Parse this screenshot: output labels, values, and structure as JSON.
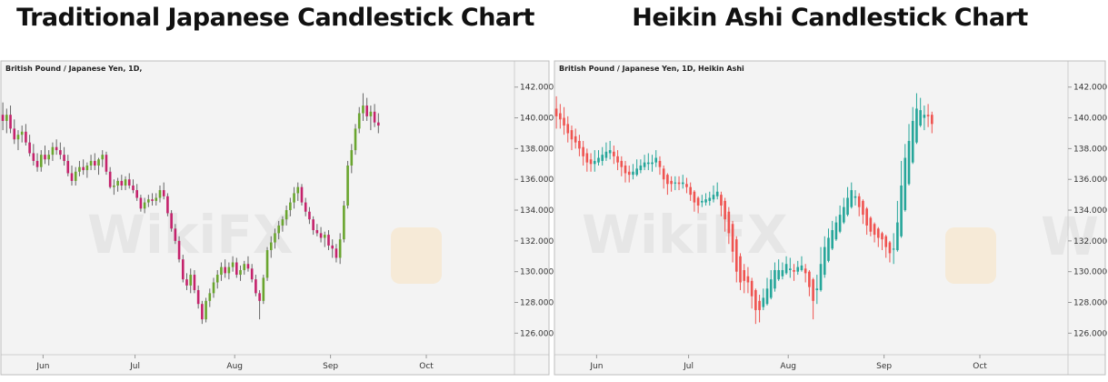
{
  "colors": {
    "up_left": "#6aa52f",
    "down_left": "#c4236c",
    "up_right": "#26a69a",
    "down_right": "#ef5350",
    "panel_bg": "#f3f3f3",
    "wick": "#666666"
  },
  "chart_data": [
    {
      "type": "candlestick",
      "title": "Traditional Japanese Candlestick Chart",
      "symbol_label": "British Pound / Japanese Yen, 1D,",
      "indicator_label": "",
      "yticks": [
        "142.000",
        "140.000",
        "138.000",
        "136.000",
        "134.000",
        "132.000",
        "130.000",
        "128.000",
        "126.000"
      ],
      "ylim": [
        124.6,
        143.7
      ],
      "xticks": [
        "Jun",
        "Jul",
        "Aug",
        "Sep",
        "Oct"
      ],
      "xtick_positions": [
        11,
        35,
        61,
        86,
        111
      ],
      "x_range": [
        0,
        134
      ],
      "grid": false,
      "candles": [
        [
          140.2,
          141.0,
          139.2,
          139.8
        ],
        [
          139.8,
          140.6,
          139.0,
          140.2
        ],
        [
          140.2,
          140.8,
          139.0,
          139.3
        ],
        [
          139.3,
          139.9,
          138.3,
          138.6
        ],
        [
          138.6,
          139.2,
          137.9,
          138.9
        ],
        [
          138.9,
          139.5,
          138.4,
          139.1
        ],
        [
          139.1,
          139.6,
          138.2,
          138.4
        ],
        [
          138.4,
          138.9,
          137.5,
          137.7
        ],
        [
          137.7,
          138.3,
          136.9,
          137.2
        ],
        [
          137.2,
          137.7,
          136.5,
          136.8
        ],
        [
          136.8,
          137.9,
          136.5,
          137.6
        ],
        [
          137.6,
          138.2,
          137.0,
          137.3
        ],
        [
          137.3,
          137.9,
          136.9,
          137.6
        ],
        [
          137.6,
          138.4,
          137.2,
          138.1
        ],
        [
          138.1,
          138.6,
          137.6,
          137.9
        ],
        [
          137.9,
          138.4,
          137.3,
          137.6
        ],
        [
          137.6,
          138.1,
          136.9,
          137.2
        ],
        [
          137.2,
          137.6,
          136.2,
          136.4
        ],
        [
          136.4,
          136.9,
          135.6,
          135.9
        ],
        [
          135.9,
          136.8,
          135.6,
          136.5
        ],
        [
          136.5,
          137.2,
          136.2,
          136.8
        ],
        [
          136.8,
          137.3,
          136.3,
          136.6
        ],
        [
          136.6,
          137.1,
          136.1,
          136.9
        ],
        [
          136.9,
          137.6,
          136.6,
          137.2
        ],
        [
          137.2,
          137.7,
          136.6,
          136.9
        ],
        [
          136.9,
          137.4,
          136.3,
          137.3
        ],
        [
          137.3,
          137.9,
          136.8,
          137.6
        ],
        [
          137.6,
          137.8,
          136.3,
          136.5
        ],
        [
          136.5,
          136.8,
          135.4,
          135.5
        ],
        [
          135.5,
          136.0,
          135.0,
          135.6
        ],
        [
          135.6,
          136.1,
          135.2,
          135.9
        ],
        [
          135.9,
          136.3,
          135.3,
          135.6
        ],
        [
          135.6,
          136.2,
          135.3,
          136.0
        ],
        [
          136.0,
          136.4,
          135.4,
          135.6
        ],
        [
          135.6,
          136.0,
          135.1,
          135.3
        ],
        [
          135.3,
          135.7,
          134.6,
          134.8
        ],
        [
          134.8,
          135.0,
          133.9,
          134.1
        ],
        [
          134.1,
          134.8,
          133.8,
          134.5
        ],
        [
          134.5,
          135.0,
          134.2,
          134.7
        ],
        [
          134.7,
          135.1,
          134.3,
          134.6
        ],
        [
          134.6,
          135.1,
          134.3,
          134.8
        ],
        [
          134.8,
          135.6,
          134.5,
          135.3
        ],
        [
          135.3,
          135.8,
          134.7,
          134.9
        ],
        [
          134.9,
          135.1,
          133.6,
          133.8
        ],
        [
          133.8,
          134.0,
          132.6,
          132.8
        ],
        [
          132.8,
          133.1,
          131.8,
          132.0
        ],
        [
          132.0,
          132.3,
          130.6,
          130.8
        ],
        [
          130.8,
          131.1,
          129.3,
          129.5
        ],
        [
          129.5,
          129.9,
          128.8,
          129.1
        ],
        [
          129.1,
          130.2,
          128.6,
          129.8
        ],
        [
          129.8,
          130.1,
          128.6,
          128.8
        ],
        [
          128.8,
          129.1,
          127.6,
          127.9
        ],
        [
          127.9,
          128.1,
          126.6,
          126.9
        ],
        [
          126.9,
          128.3,
          126.7,
          128.1
        ],
        [
          128.1,
          128.9,
          127.7,
          128.6
        ],
        [
          128.6,
          129.6,
          128.3,
          129.3
        ],
        [
          129.3,
          130.1,
          128.9,
          129.8
        ],
        [
          129.8,
          130.6,
          129.4,
          130.3
        ],
        [
          130.3,
          130.8,
          129.6,
          129.9
        ],
        [
          129.9,
          130.6,
          129.5,
          130.3
        ],
        [
          130.3,
          131.0,
          130.0,
          130.6
        ],
        [
          130.6,
          130.9,
          129.6,
          129.8
        ],
        [
          129.8,
          130.4,
          129.4,
          130.1
        ],
        [
          130.1,
          130.7,
          129.8,
          130.5
        ],
        [
          130.5,
          131.0,
          130.0,
          130.2
        ],
        [
          130.2,
          130.5,
          129.3,
          129.5
        ],
        [
          129.5,
          129.8,
          128.4,
          128.6
        ],
        [
          128.6,
          128.8,
          126.9,
          128.1
        ],
        [
          128.1,
          129.8,
          127.9,
          129.6
        ],
        [
          129.6,
          131.6,
          129.4,
          131.4
        ],
        [
          131.4,
          132.3,
          130.9,
          131.9
        ],
        [
          131.9,
          132.8,
          131.5,
          132.5
        ],
        [
          132.5,
          133.3,
          132.1,
          133.0
        ],
        [
          133.0,
          133.6,
          132.6,
          133.4
        ],
        [
          133.4,
          134.3,
          133.0,
          134.0
        ],
        [
          134.0,
          134.8,
          133.6,
          134.5
        ],
        [
          134.5,
          135.5,
          134.1,
          135.1
        ],
        [
          135.1,
          135.8,
          134.6,
          135.5
        ],
        [
          135.5,
          135.7,
          134.3,
          134.5
        ],
        [
          134.5,
          134.8,
          133.6,
          133.9
        ],
        [
          133.9,
          134.2,
          133.1,
          133.4
        ],
        [
          133.4,
          133.6,
          132.4,
          132.7
        ],
        [
          132.7,
          133.1,
          132.3,
          132.5
        ],
        [
          132.5,
          132.9,
          131.9,
          132.2
        ],
        [
          132.2,
          132.6,
          131.6,
          132.4
        ],
        [
          132.4,
          132.7,
          131.4,
          131.7
        ],
        [
          131.7,
          132.1,
          130.9,
          131.5
        ],
        [
          131.5,
          131.8,
          130.6,
          130.9
        ],
        [
          130.9,
          132.5,
          130.5,
          132.1
        ],
        [
          132.1,
          134.6,
          131.9,
          134.3
        ],
        [
          134.3,
          137.2,
          134.1,
          136.9
        ],
        [
          136.9,
          138.3,
          136.4,
          137.9
        ],
        [
          137.9,
          139.6,
          137.6,
          139.3
        ],
        [
          139.3,
          140.7,
          139.0,
          140.3
        ],
        [
          140.3,
          141.6,
          139.8,
          140.8
        ],
        [
          140.8,
          141.3,
          139.8,
          140.1
        ],
        [
          140.1,
          140.8,
          139.2,
          140.4
        ],
        [
          140.4,
          140.9,
          139.4,
          139.7
        ],
        [
          139.7,
          140.3,
          139.0,
          139.5
        ]
      ]
    },
    {
      "type": "candlestick",
      "title": "Heikin Ashi Candlestick Chart",
      "symbol_label": "British Pound / Japanese Yen, 1D,",
      "indicator_label": "Heikin Ashi",
      "yticks": [
        "142.000",
        "140.000",
        "138.000",
        "136.000",
        "134.000",
        "132.000",
        "130.000",
        "128.000",
        "126.000"
      ],
      "ylim": [
        124.6,
        143.7
      ],
      "xticks": [
        "Jun",
        "Jul",
        "Aug",
        "Sep",
        "Oct"
      ],
      "xtick_positions": [
        11,
        35,
        61,
        86,
        111
      ],
      "x_range": [
        0,
        134
      ],
      "grid": false,
      "candles": [
        [
          140.6,
          141.4,
          139.3,
          140.1
        ],
        [
          140.3,
          140.9,
          139.3,
          139.9
        ],
        [
          140.0,
          140.7,
          138.9,
          139.5
        ],
        [
          139.6,
          140.1,
          138.4,
          139.0
        ],
        [
          139.2,
          139.5,
          137.9,
          138.6
        ],
        [
          138.8,
          139.3,
          138.0,
          138.4
        ],
        [
          138.5,
          138.9,
          137.5,
          138.0
        ],
        [
          138.1,
          138.5,
          136.9,
          137.5
        ],
        [
          137.7,
          138.0,
          136.5,
          137.1
        ],
        [
          137.3,
          137.7,
          136.5,
          137.0
        ],
        [
          137.0,
          137.9,
          136.5,
          137.2
        ],
        [
          137.1,
          137.9,
          136.9,
          137.4
        ],
        [
          137.2,
          138.1,
          136.9,
          137.6
        ],
        [
          137.4,
          138.4,
          137.2,
          137.8
        ],
        [
          137.7,
          138.5,
          137.3,
          137.9
        ],
        [
          137.8,
          138.2,
          137.0,
          137.5
        ],
        [
          137.5,
          137.9,
          136.6,
          137.1
        ],
        [
          137.2,
          137.5,
          136.2,
          136.8
        ],
        [
          136.9,
          137.2,
          135.8,
          136.4
        ],
        [
          136.5,
          136.9,
          135.8,
          136.3
        ],
        [
          136.3,
          137.0,
          136.0,
          136.5
        ],
        [
          136.3,
          137.3,
          136.2,
          136.7
        ],
        [
          136.6,
          137.3,
          136.4,
          136.9
        ],
        [
          136.8,
          137.6,
          136.6,
          137.1
        ],
        [
          137.0,
          137.7,
          136.6,
          137.1
        ],
        [
          137.0,
          137.6,
          136.5,
          137.1
        ],
        [
          137.1,
          137.9,
          136.8,
          137.4
        ],
        [
          137.2,
          137.5,
          136.3,
          136.8
        ],
        [
          136.7,
          136.9,
          135.4,
          136.0
        ],
        [
          136.3,
          136.4,
          135.0,
          135.7
        ],
        [
          135.9,
          136.2,
          135.2,
          135.7
        ],
        [
          135.8,
          136.2,
          135.3,
          135.8
        ],
        [
          135.8,
          136.2,
          135.3,
          135.7
        ],
        [
          135.7,
          136.3,
          135.4,
          135.8
        ],
        [
          135.7,
          136.1,
          135.1,
          135.5
        ],
        [
          135.5,
          135.8,
          134.6,
          135.0
        ],
        [
          135.2,
          135.3,
          133.9,
          134.5
        ],
        [
          134.8,
          134.9,
          133.8,
          134.3
        ],
        [
          134.5,
          135.0,
          134.2,
          134.6
        ],
        [
          134.5,
          135.1,
          134.3,
          134.7
        ],
        [
          134.6,
          135.2,
          134.3,
          134.8
        ],
        [
          134.7,
          135.6,
          134.5,
          135.0
        ],
        [
          134.9,
          135.8,
          134.7,
          135.2
        ],
        [
          135.0,
          135.2,
          133.6,
          134.3
        ],
        [
          134.6,
          134.8,
          132.6,
          133.4
        ],
        [
          133.9,
          134.2,
          131.8,
          132.5
        ],
        [
          133.1,
          133.3,
          130.6,
          131.3
        ],
        [
          132.1,
          132.3,
          129.3,
          130.0
        ],
        [
          131.0,
          131.2,
          128.8,
          129.3
        ],
        [
          130.1,
          130.5,
          128.6,
          129.4
        ],
        [
          129.7,
          130.3,
          128.6,
          129.3
        ],
        [
          129.4,
          129.6,
          127.6,
          128.4
        ],
        [
          128.8,
          128.9,
          126.6,
          127.5
        ],
        [
          128.1,
          128.5,
          126.7,
          127.5
        ],
        [
          127.7,
          128.9,
          127.5,
          128.3
        ],
        [
          127.9,
          129.6,
          127.8,
          128.9
        ],
        [
          128.3,
          130.1,
          128.2,
          129.5
        ],
        [
          128.9,
          130.6,
          128.7,
          130.1
        ],
        [
          129.5,
          130.8,
          129.4,
          130.1
        ],
        [
          129.7,
          130.6,
          129.5,
          130.1
        ],
        [
          129.9,
          131.0,
          129.8,
          130.5
        ],
        [
          130.1,
          130.9,
          129.6,
          130.2
        ],
        [
          130.1,
          130.5,
          129.4,
          130.0
        ],
        [
          130.0,
          130.7,
          129.8,
          130.3
        ],
        [
          130.1,
          131.0,
          130.0,
          130.4
        ],
        [
          130.2,
          130.5,
          129.3,
          129.9
        ],
        [
          130.0,
          130.1,
          128.4,
          129.0
        ],
        [
          129.5,
          129.6,
          126.9,
          128.1
        ],
        [
          128.8,
          129.8,
          127.9,
          128.9
        ],
        [
          128.8,
          131.6,
          128.7,
          130.5
        ],
        [
          129.8,
          132.3,
          129.6,
          131.6
        ],
        [
          130.7,
          132.8,
          130.6,
          132.2
        ],
        [
          131.5,
          133.3,
          131.4,
          132.7
        ],
        [
          132.1,
          133.6,
          132.0,
          133.2
        ],
        [
          132.6,
          134.3,
          132.5,
          133.7
        ],
        [
          133.2,
          134.8,
          133.1,
          134.2
        ],
        [
          133.7,
          135.5,
          133.6,
          134.8
        ],
        [
          134.2,
          135.8,
          134.1,
          135.3
        ],
        [
          134.8,
          135.3,
          134.3,
          134.9
        ],
        [
          134.9,
          135.1,
          133.6,
          134.2
        ],
        [
          134.6,
          134.7,
          133.1,
          133.7
        ],
        [
          134.1,
          134.2,
          132.4,
          133.0
        ],
        [
          133.5,
          133.6,
          132.3,
          132.6
        ],
        [
          133.1,
          133.2,
          131.9,
          132.4
        ],
        [
          132.8,
          132.9,
          131.6,
          132.2
        ],
        [
          132.5,
          132.6,
          131.4,
          132.1
        ],
        [
          132.3,
          132.4,
          130.9,
          131.6
        ],
        [
          131.9,
          132.0,
          130.6,
          131.2
        ],
        [
          131.5,
          132.5,
          130.5,
          131.5
        ],
        [
          131.4,
          134.6,
          131.3,
          133.2
        ],
        [
          132.3,
          137.2,
          132.2,
          135.6
        ],
        [
          134.0,
          138.3,
          133.9,
          137.4
        ],
        [
          135.7,
          139.6,
          135.6,
          138.5
        ],
        [
          137.1,
          140.7,
          137.0,
          139.8
        ],
        [
          138.4,
          141.6,
          138.3,
          140.6
        ],
        [
          139.5,
          141.3,
          139.4,
          140.5
        ],
        [
          140.0,
          140.8,
          139.2,
          140.2
        ],
        [
          140.2,
          140.9,
          139.4,
          140.1
        ],
        [
          140.2,
          140.4,
          139.0,
          139.6
        ]
      ]
    }
  ],
  "watermark": {
    "text": "WikiFX"
  }
}
